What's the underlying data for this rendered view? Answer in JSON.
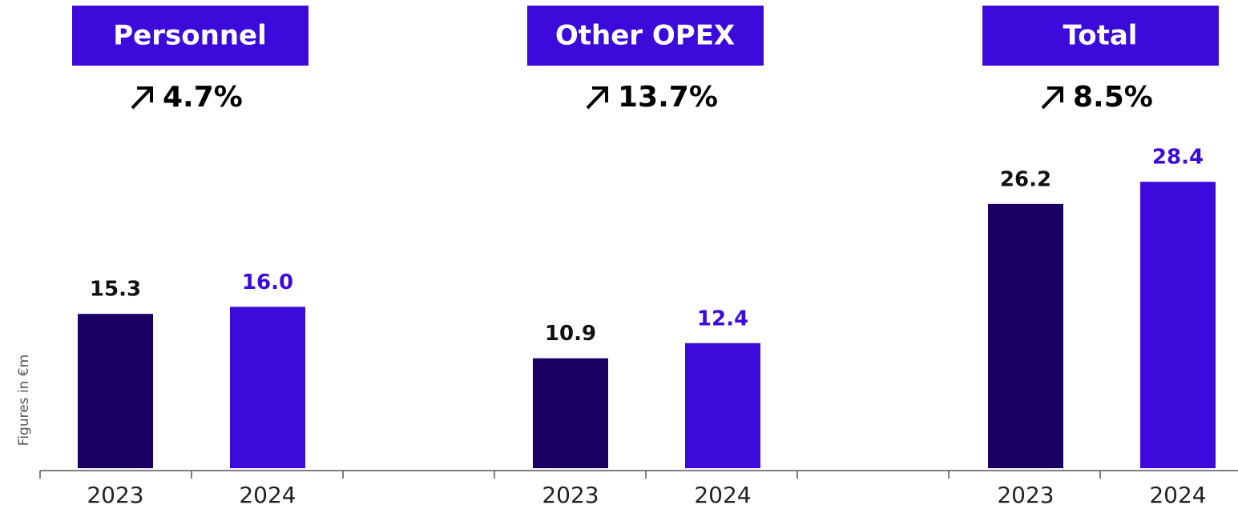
{
  "chart_data": [
    {
      "type": "bar",
      "title": "Personnel",
      "annotation": "4.7%",
      "ylabel": "Figures in €m",
      "categories": [
        "2023",
        "2024"
      ],
      "values": [
        15.3,
        16.0
      ],
      "value_labels": [
        "15.3",
        "16.0"
      ],
      "colors": [
        "#1b0063",
        "#3c0bdb"
      ],
      "ylim": [
        0,
        30
      ]
    },
    {
      "type": "bar",
      "title": "Other OPEX",
      "annotation": "13.7%",
      "categories": [
        "2023",
        "2024"
      ],
      "values": [
        10.9,
        12.4
      ],
      "colors": [
        "#1b0063",
        "#3c0bdb"
      ],
      "ylim": [
        0,
        30
      ]
    },
    {
      "type": "bar",
      "title": "Total",
      "annotation": "8.5%",
      "categories": [
        "2023",
        "2024"
      ],
      "values": [
        26.2,
        28.4
      ],
      "colors": [
        "#1b0063",
        "#3c0bdb"
      ],
      "ylim": [
        0,
        30
      ]
    }
  ]
}
